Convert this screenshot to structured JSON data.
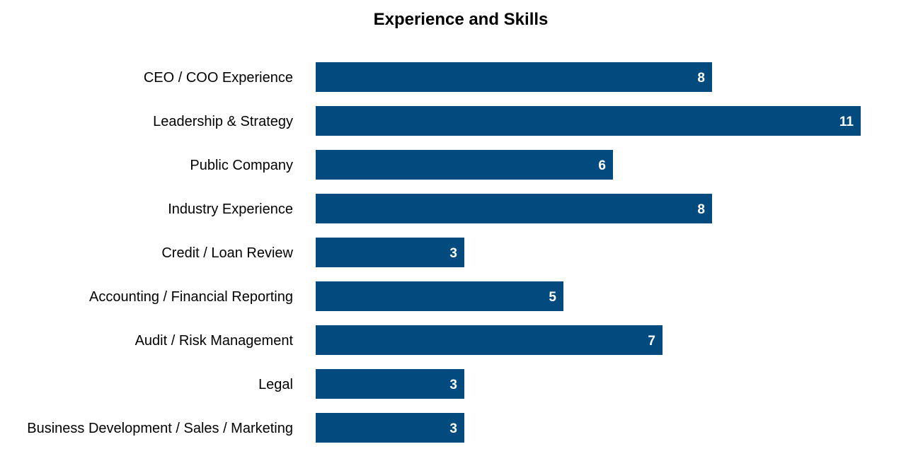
{
  "chart_data": {
    "type": "bar",
    "orientation": "horizontal",
    "title": "Experience and Skills",
    "xlabel": "",
    "ylabel": "",
    "categories": [
      "CEO / COO Experience",
      "Leadership & Strategy",
      "Public Company",
      "Industry Experience",
      "Credit / Loan Review",
      "Accounting / Financial Reporting",
      "Audit / Risk Management",
      "Legal",
      "Business Development / Sales / Marketing"
    ],
    "values": [
      8,
      11,
      6,
      8,
      3,
      5,
      7,
      3,
      3
    ],
    "xlim": [
      0,
      11
    ],
    "grid": false,
    "legend": "none",
    "bar_color": "#034a7f",
    "value_label_color": "#ffffff"
  }
}
